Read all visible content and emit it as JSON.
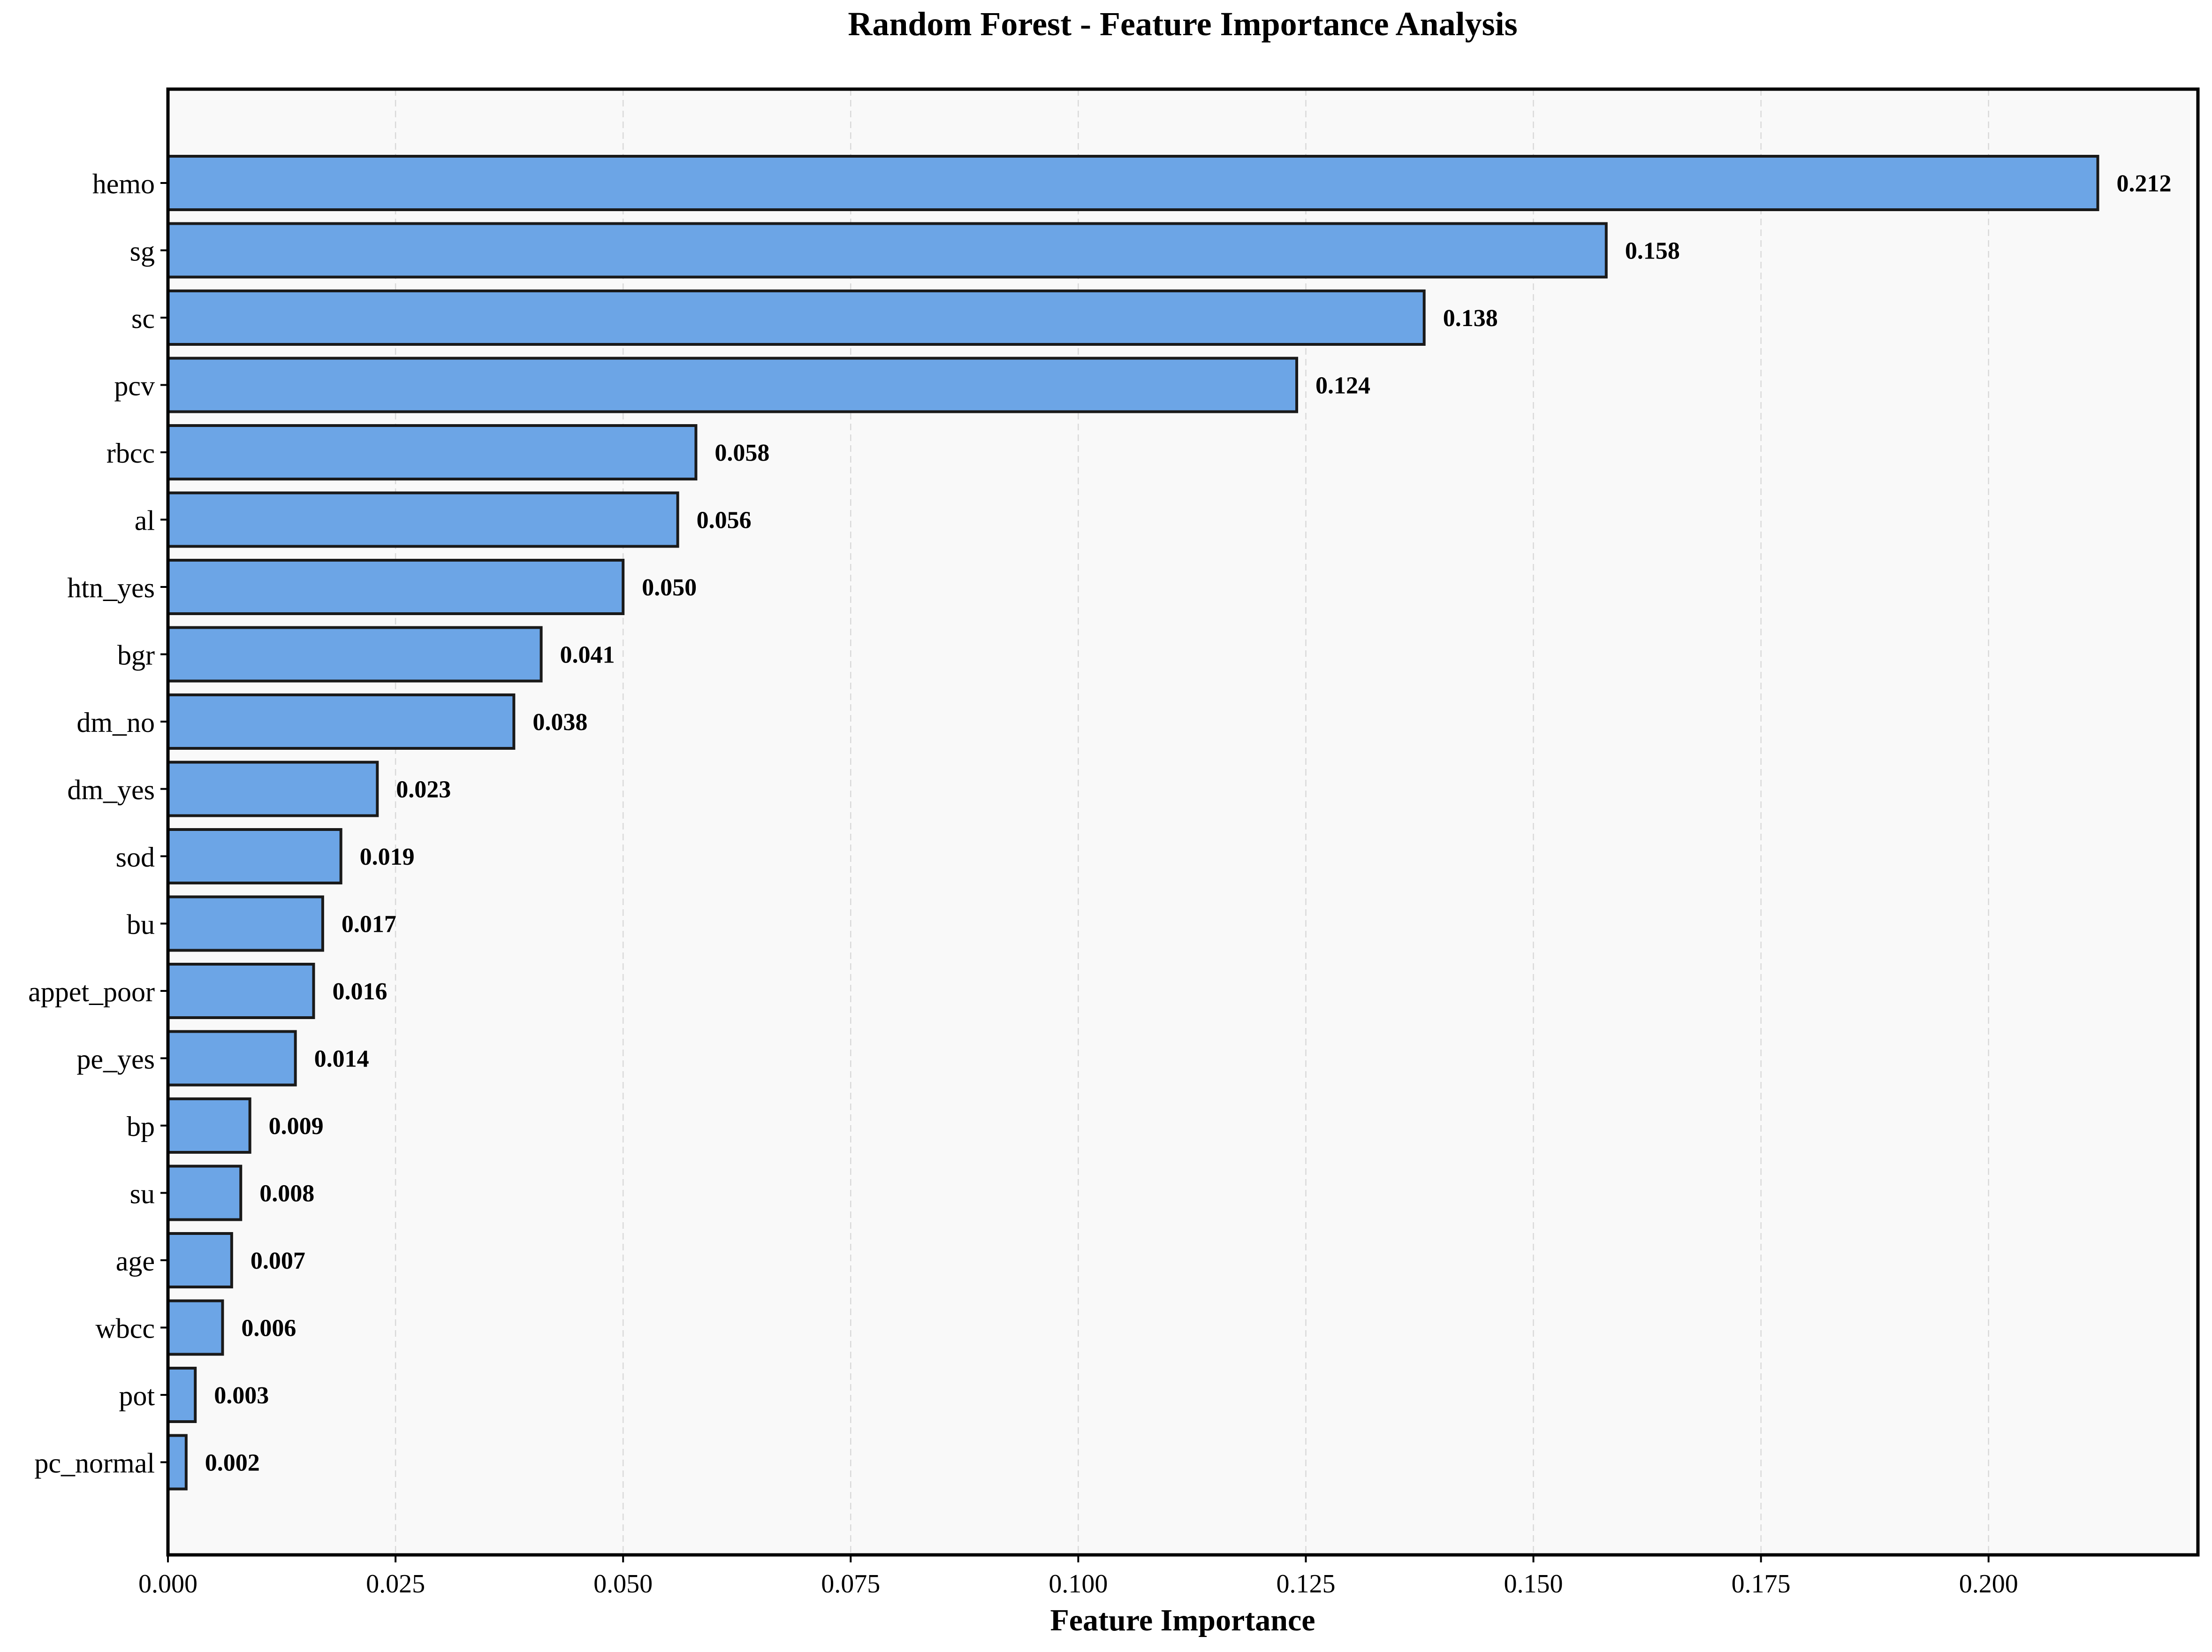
{
  "chart_data": {
    "type": "bar",
    "orientation": "horizontal",
    "title": "Random Forest - Feature Importance Analysis",
    "xlabel": "Feature Importance",
    "ylabel": "",
    "xlim": [
      0,
      0.223
    ],
    "x_ticks": [
      "0.000",
      "0.025",
      "0.050",
      "0.075",
      "0.100",
      "0.125",
      "0.150",
      "0.175",
      "0.200"
    ],
    "x_tick_values": [
      0,
      0.025,
      0.05,
      0.075,
      0.1,
      0.125,
      0.15,
      0.175,
      0.2
    ],
    "grid": true,
    "legend": "none",
    "colors": {
      "bar_fill": "#6ca5e6",
      "bar_edge": "#1a1a1a",
      "plot_background": "#f9f9f9",
      "grid": "#d9d9d9",
      "axis": "#000000"
    },
    "categories": [
      "hemo",
      "sg",
      "sc",
      "pcv",
      "rbcc",
      "al",
      "htn_yes",
      "bgr",
      "dm_no",
      "dm_yes",
      "sod",
      "bu",
      "appet_poor",
      "pe_yes",
      "bp",
      "su",
      "age",
      "wbcc",
      "pot",
      "pc_normal"
    ],
    "values": [
      0.212,
      0.158,
      0.138,
      0.124,
      0.058,
      0.056,
      0.05,
      0.041,
      0.038,
      0.023,
      0.019,
      0.017,
      0.016,
      0.014,
      0.009,
      0.008,
      0.007,
      0.006,
      0.003,
      0.002
    ],
    "value_labels": [
      "0.212",
      "0.158",
      "0.138",
      "0.124",
      "0.058",
      "0.056",
      "0.050",
      "0.041",
      "0.038",
      "0.023",
      "0.019",
      "0.017",
      "0.016",
      "0.014",
      "0.009",
      "0.008",
      "0.007",
      "0.006",
      "0.003",
      "0.002"
    ]
  }
}
